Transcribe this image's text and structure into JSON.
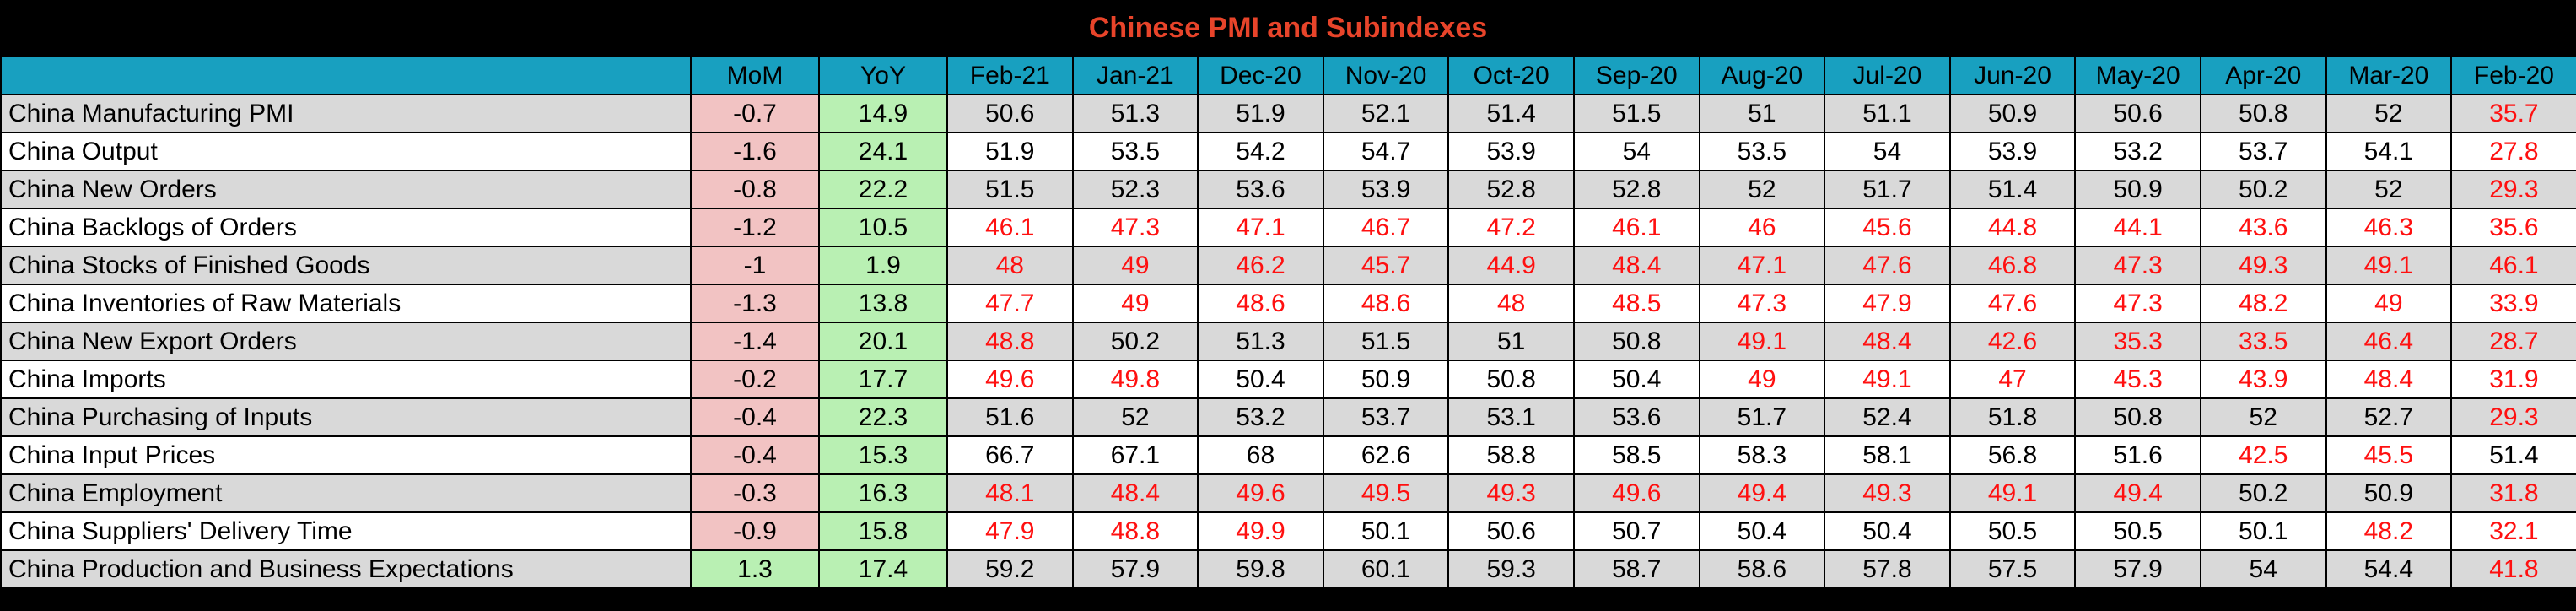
{
  "title": "Chinese PMI and Subindexes",
  "colors": {
    "below_50": "#ff1010",
    "mom_negative_bg": "#f2c3c3",
    "positive_bg": "#b9f0b3",
    "header_bg": "#18a0c0",
    "title": "#e8442a"
  },
  "chart_data": {
    "type": "table",
    "title": "Chinese PMI and Subindexes",
    "columns": [
      "",
      "MoM",
      "YoY",
      "Feb-21",
      "Jan-21",
      "Dec-20",
      "Nov-20",
      "Oct-20",
      "Sep-20",
      "Aug-20",
      "Jul-20",
      "Jun-20",
      "May-20",
      "Apr-20",
      "Mar-20",
      "Feb-20"
    ],
    "rows": [
      {
        "name": "China Manufacturing PMI",
        "mom": "-0.7",
        "yoy": "14.9",
        "values": [
          "50.6",
          "51.3",
          "51.9",
          "52.1",
          "51.4",
          "51.5",
          "51",
          "51.1",
          "50.9",
          "50.6",
          "50.8",
          "52",
          "35.7"
        ]
      },
      {
        "name": "China Output",
        "mom": "-1.6",
        "yoy": "24.1",
        "values": [
          "51.9",
          "53.5",
          "54.2",
          "54.7",
          "53.9",
          "54",
          "53.5",
          "54",
          "53.9",
          "53.2",
          "53.7",
          "54.1",
          "27.8"
        ]
      },
      {
        "name": "China New Orders",
        "mom": "-0.8",
        "yoy": "22.2",
        "values": [
          "51.5",
          "52.3",
          "53.6",
          "53.9",
          "52.8",
          "52.8",
          "52",
          "51.7",
          "51.4",
          "50.9",
          "50.2",
          "52",
          "29.3"
        ]
      },
      {
        "name": "China Backlogs of Orders",
        "mom": "-1.2",
        "yoy": "10.5",
        "values": [
          "46.1",
          "47.3",
          "47.1",
          "46.7",
          "47.2",
          "46.1",
          "46",
          "45.6",
          "44.8",
          "44.1",
          "43.6",
          "46.3",
          "35.6"
        ]
      },
      {
        "name": "China Stocks of Finished Goods",
        "mom": "-1",
        "yoy": "1.9",
        "values": [
          "48",
          "49",
          "46.2",
          "45.7",
          "44.9",
          "48.4",
          "47.1",
          "47.6",
          "46.8",
          "47.3",
          "49.3",
          "49.1",
          "46.1"
        ]
      },
      {
        "name": "China Inventories of Raw Materials",
        "mom": "-1.3",
        "yoy": "13.8",
        "values": [
          "47.7",
          "49",
          "48.6",
          "48.6",
          "48",
          "48.5",
          "47.3",
          "47.9",
          "47.6",
          "47.3",
          "48.2",
          "49",
          "33.9"
        ]
      },
      {
        "name": "China New Export Orders",
        "mom": "-1.4",
        "yoy": "20.1",
        "values": [
          "48.8",
          "50.2",
          "51.3",
          "51.5",
          "51",
          "50.8",
          "49.1",
          "48.4",
          "42.6",
          "35.3",
          "33.5",
          "46.4",
          "28.7"
        ]
      },
      {
        "name": "China Imports",
        "mom": "-0.2",
        "yoy": "17.7",
        "values": [
          "49.6",
          "49.8",
          "50.4",
          "50.9",
          "50.8",
          "50.4",
          "49",
          "49.1",
          "47",
          "45.3",
          "43.9",
          "48.4",
          "31.9"
        ]
      },
      {
        "name": "China Purchasing of Inputs",
        "mom": "-0.4",
        "yoy": "22.3",
        "values": [
          "51.6",
          "52",
          "53.2",
          "53.7",
          "53.1",
          "53.6",
          "51.7",
          "52.4",
          "51.8",
          "50.8",
          "52",
          "52.7",
          "29.3"
        ]
      },
      {
        "name": "China Input Prices",
        "mom": "-0.4",
        "yoy": "15.3",
        "values": [
          "66.7",
          "67.1",
          "68",
          "62.6",
          "58.8",
          "58.5",
          "58.3",
          "58.1",
          "56.8",
          "51.6",
          "42.5",
          "45.5",
          "51.4"
        ]
      },
      {
        "name": "China Employment",
        "mom": "-0.3",
        "yoy": "16.3",
        "values": [
          "48.1",
          "48.4",
          "49.6",
          "49.5",
          "49.3",
          "49.6",
          "49.4",
          "49.3",
          "49.1",
          "49.4",
          "50.2",
          "50.9",
          "31.8"
        ]
      },
      {
        "name": "China Suppliers' Delivery Time",
        "mom": "-0.9",
        "yoy": "15.8",
        "values": [
          "47.9",
          "48.8",
          "49.9",
          "50.1",
          "50.6",
          "50.7",
          "50.4",
          "50.4",
          "50.5",
          "50.5",
          "50.1",
          "48.2",
          "32.1"
        ]
      },
      {
        "name": "China Production and Business Expectations",
        "mom": "1.3",
        "yoy": "17.4",
        "values": [
          "59.2",
          "57.9",
          "59.8",
          "60.1",
          "59.3",
          "58.7",
          "58.6",
          "57.8",
          "57.5",
          "57.9",
          "54",
          "54.4",
          "41.8"
        ]
      }
    ]
  }
}
